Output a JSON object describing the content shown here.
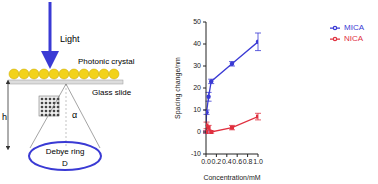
{
  "chart_data": {
    "type": "line",
    "x_label": "Concentration/mM",
    "y_label": "Spacing change/nm",
    "xlim": [
      0,
      1
    ],
    "xticks": [
      {
        "value": 0,
        "label": "0.0"
      },
      {
        "value": 0.2,
        "label": "0.2"
      },
      {
        "value": 0.4,
        "label": "0.4"
      },
      {
        "value": 0.6,
        "label": "0.6"
      },
      {
        "value": 0.8,
        "label": "0.8"
      },
      {
        "value": 1,
        "label": "1.0"
      }
    ],
    "ylim": [
      -10,
      50
    ],
    "yticks": [
      -10,
      0,
      10,
      20,
      30,
      40,
      50
    ],
    "legend": "upper right",
    "series": [
      {
        "name": "MICA",
        "color": "#3a3ad4",
        "marker": "circle",
        "x": [
          0,
          0.01,
          0.05,
          0.1,
          0.5,
          1.0
        ],
        "values": [
          0,
          9,
          16,
          23,
          31,
          41
        ],
        "error": [
          0.5,
          1,
          2,
          1,
          1,
          4
        ]
      },
      {
        "name": "NICA",
        "color": "#e0303f",
        "marker": "square",
        "x": [
          0,
          0.01,
          0.05,
          0.1,
          0.5,
          1.0
        ],
        "values": [
          0,
          3,
          2,
          0,
          2,
          7
        ],
        "error": [
          0.5,
          1.5,
          1,
          0.5,
          1,
          1.5
        ]
      }
    ]
  },
  "diagram": {
    "light": "Light",
    "crystal": "Photonic crystal",
    "slide": "Glass slide",
    "h": "h",
    "alpha": "α",
    "ring": "Debye ring",
    "d": "D"
  }
}
